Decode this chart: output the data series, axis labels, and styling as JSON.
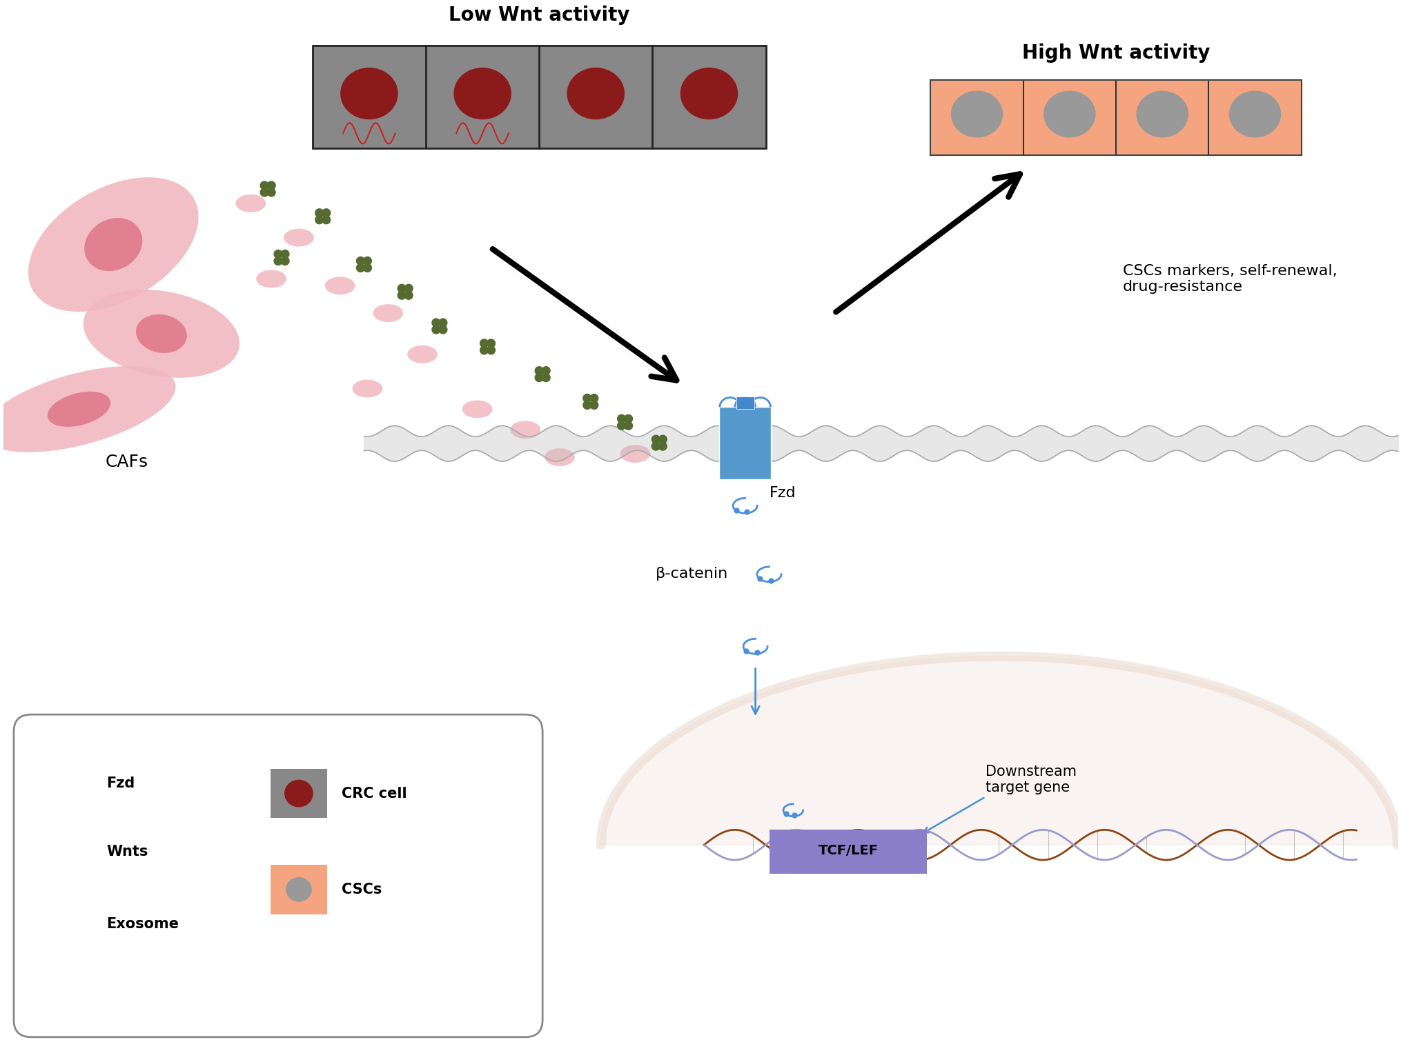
{
  "bg_color": "#ffffff",
  "title_low_wnt": "Low Wnt activity",
  "title_high_wnt": "High Wnt activity",
  "label_cafs": "CAFs",
  "label_fzd": "Fzd",
  "label_bcatenin": "β-catenin",
  "label_cscs_markers": "CSCs markers, self-renewal,\ndrug-resistance",
  "label_downstream": "Downstream\ntarget gene",
  "label_tcflef": "TCF/LEF",
  "legend_fzd": "Fzd",
  "legend_wnts": "Wnts",
  "legend_exosome": "Exosome",
  "legend_crc": "CRC cell",
  "legend_cscs": "CSCs",
  "crc_cell_color": "#8b1a1a",
  "crc_bg_color": "#888888",
  "csc_cell_color": "#999999",
  "csc_bg_color": "#f4a580",
  "exosome_color": "#f2b8c0",
  "wnt_dot_color": "#556b2f",
  "fzd_color": "#cc2222",
  "blue_color": "#4a90d9",
  "membrane_color": "#bbbbbb",
  "tcflef_color": "#8a7ec8",
  "nucleus_color": "#e8d5c8",
  "dna_color1": "#8b4513",
  "dna_color2": "#9999cc"
}
